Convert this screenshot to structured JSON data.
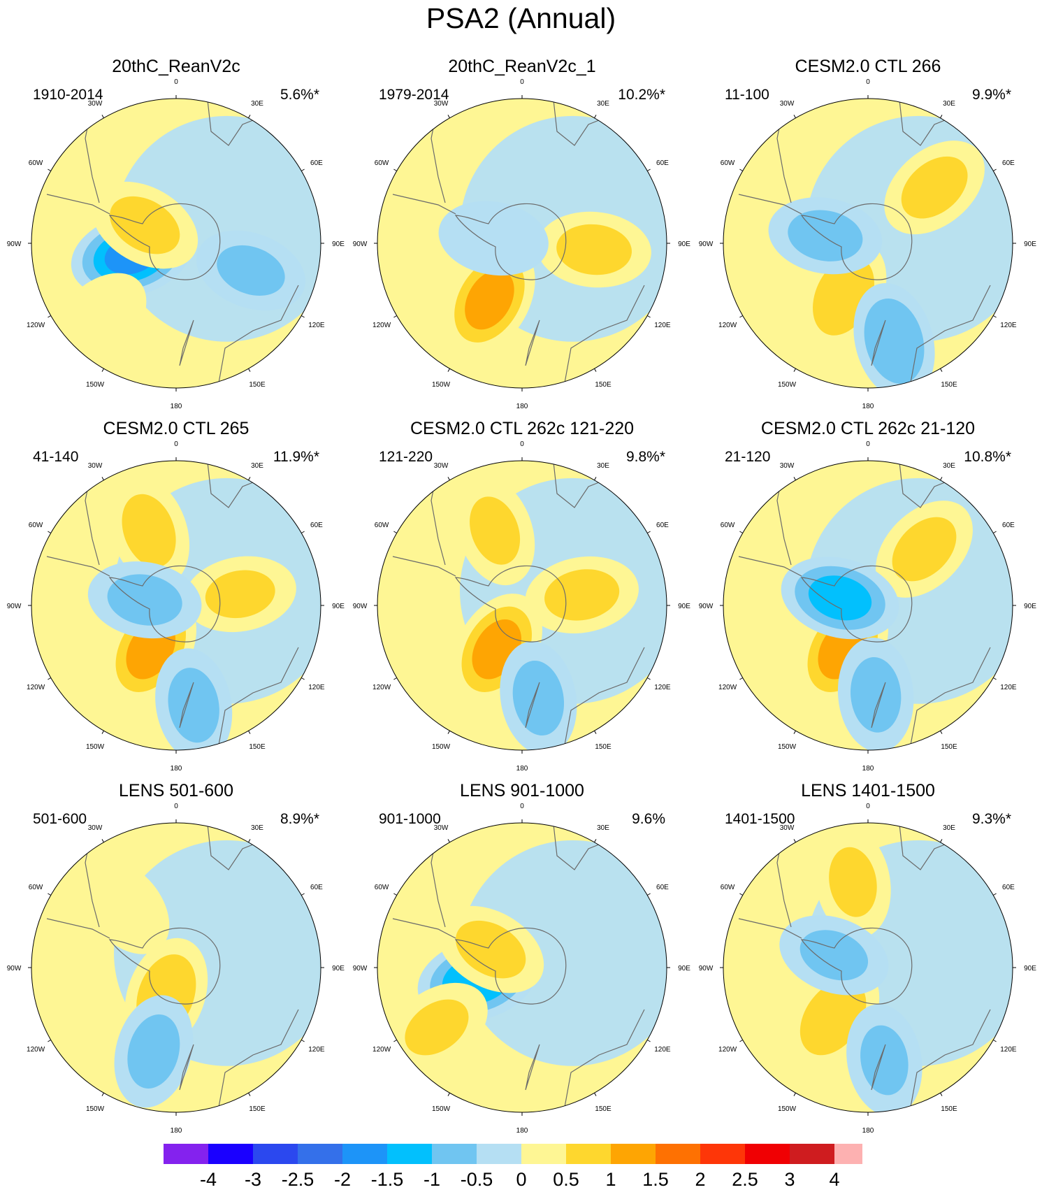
{
  "title": "PSA2 (Annual)",
  "longitude_labels": [
    "0",
    "30E",
    "60E",
    "90E",
    "120E",
    "150E",
    "180",
    "150W",
    "120W",
    "90W",
    "60W",
    "30W"
  ],
  "panels": [
    {
      "title": "20thC_ReanV2c",
      "period": "1910-2014",
      "variance": "5.6%*",
      "anomalies": [
        {
          "lon": 255,
          "colat": 0.32,
          "peak": -1.8
        },
        {
          "lon": 110,
          "colat": 0.55,
          "peak": -0.8
        },
        {
          "lon": 300,
          "colat": 0.25,
          "peak": 0.9
        },
        {
          "lon": 225,
          "colat": 0.75,
          "peak": 0.7
        }
      ]
    },
    {
      "title": "20thC_ReanV2c_1",
      "period": "1979-2014",
      "variance": "10.2%*",
      "anomalies": [
        {
          "lon": 210,
          "colat": 0.45,
          "peak": 1.4
        },
        {
          "lon": 95,
          "colat": 0.5,
          "peak": 0.9
        },
        {
          "lon": 280,
          "colat": 0.2,
          "peak": -0.7
        }
      ]
    },
    {
      "title": "CESM2.0 CTL 266",
      "period": "11-100",
      "variance": "9.9%*",
      "anomalies": [
        {
          "lon": 50,
          "colat": 0.6,
          "peak": 0.9
        },
        {
          "lon": 205,
          "colat": 0.4,
          "peak": 1.1
        },
        {
          "lon": 165,
          "colat": 0.7,
          "peak": -1.2
        },
        {
          "lon": 280,
          "colat": 0.3,
          "peak": -0.9
        }
      ]
    },
    {
      "title": "CESM2.0 CTL 265",
      "period": "41-140",
      "variance": "11.9%*",
      "anomalies": [
        {
          "lon": 210,
          "colat": 0.35,
          "peak": 1.4
        },
        {
          "lon": 340,
          "colat": 0.55,
          "peak": 0.9
        },
        {
          "lon": 80,
          "colat": 0.45,
          "peak": 0.8
        },
        {
          "lon": 170,
          "colat": 0.7,
          "peak": -0.9
        },
        {
          "lon": 280,
          "colat": 0.22,
          "peak": -0.9
        }
      ]
    },
    {
      "title": "CESM2.0 CTL 262c 121-220",
      "period": "121-220",
      "variance": "9.8%*",
      "anomalies": [
        {
          "lon": 210,
          "colat": 0.35,
          "peak": 1.4
        },
        {
          "lon": 340,
          "colat": 0.55,
          "peak": 0.8
        },
        {
          "lon": 80,
          "colat": 0.42,
          "peak": 0.9
        },
        {
          "lon": 170,
          "colat": 0.65,
          "peak": -0.9
        }
      ]
    },
    {
      "title": "CESM2.0 CTL 262c 21-120",
      "period": "21-120",
      "variance": "10.8%*",
      "anomalies": [
        {
          "lon": 210,
          "colat": 0.35,
          "peak": 1.4
        },
        {
          "lon": 45,
          "colat": 0.55,
          "peak": 0.9
        },
        {
          "lon": 175,
          "colat": 0.62,
          "peak": -0.9
        },
        {
          "lon": 285,
          "colat": 0.2,
          "peak": -1.4
        }
      ]
    },
    {
      "title": "LENS 501-600",
      "period": "501-600",
      "variance": "8.9%*",
      "anomalies": [
        {
          "lon": 200,
          "colat": 0.2,
          "peak": 1.1
        },
        {
          "lon": 195,
          "colat": 0.6,
          "peak": -0.9
        },
        {
          "lon": 320,
          "colat": 0.55,
          "peak": 0.6
        }
      ]
    },
    {
      "title": "LENS 901-1000",
      "period": "901-1000",
      "variance": "9.6%",
      "anomalies": [
        {
          "lon": 255,
          "colat": 0.32,
          "peak": -1.6
        },
        {
          "lon": 300,
          "colat": 0.25,
          "peak": 0.9
        },
        {
          "lon": 235,
          "colat": 0.72,
          "peak": 0.8
        }
      ]
    },
    {
      "title": "LENS 1401-1500",
      "period": "1401-1500",
      "variance": "9.3%*",
      "anomalies": [
        {
          "lon": 215,
          "colat": 0.42,
          "peak": 1.1
        },
        {
          "lon": 350,
          "colat": 0.6,
          "peak": 0.8
        },
        {
          "lon": 170,
          "colat": 0.65,
          "peak": -0.8
        },
        {
          "lon": 290,
          "colat": 0.25,
          "peak": -0.8
        }
      ]
    }
  ],
  "colorbar": {
    "labels": [
      "-4",
      "-3",
      "-2.5",
      "-2",
      "-1.5",
      "-1",
      "-0.5",
      "0",
      "0.5",
      "1",
      "1.5",
      "2",
      "2.5",
      "3",
      "4"
    ],
    "thresholds": [
      -4,
      -3,
      -2.5,
      -2,
      -1.5,
      -1,
      -0.5,
      0,
      0.5,
      1,
      1.5,
      2,
      2.5,
      3,
      4
    ],
    "colors": [
      "#8422ee",
      "#1a00ff",
      "#2b48ef",
      "#3470ea",
      "#1d94f8",
      "#02c0fd",
      "#70c5f1",
      "#b5dff3",
      "#fef694",
      "#fed72e",
      "#fea503",
      "#fe7102",
      "#fe3608",
      "#f00003",
      "#cf1c1f",
      "#fdb1b1"
    ]
  }
}
